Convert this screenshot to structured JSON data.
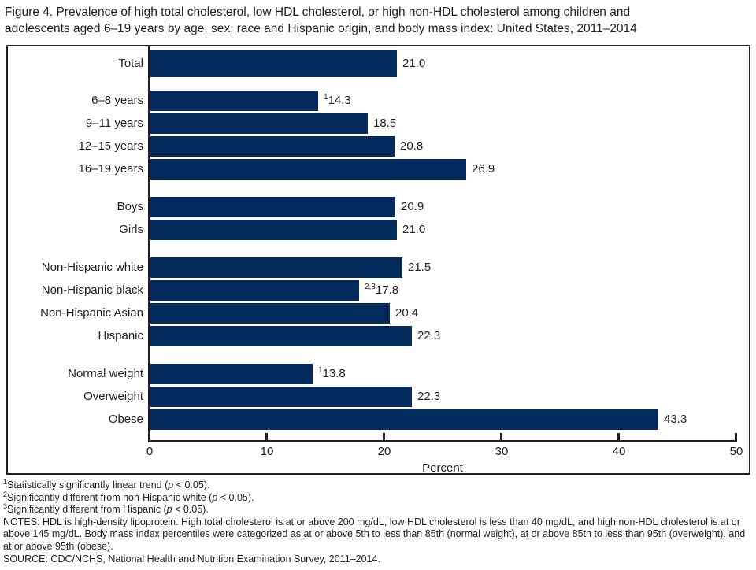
{
  "title_lines": [
    "Figure 4. Prevalence of high total cholesterol, low HDL cholesterol, or high non-HDL cholesterol among children and",
    "adolescents aged 6–19 years by age, sex, race and Hispanic origin, and body mass index: United States, 2011–2014"
  ],
  "chart_data": {
    "type": "bar",
    "orientation": "horizontal",
    "title": "",
    "xlabel": "Percent",
    "ylabel": "",
    "xlim": [
      0,
      50
    ],
    "xticks": [
      0,
      10,
      20,
      30,
      40,
      50
    ],
    "grid": false,
    "legend": false,
    "bar_color": "#032b5e",
    "groups": [
      {
        "name": "total",
        "bars": [
          {
            "label": "Total",
            "value": 21.0,
            "display": "21.0",
            "sup": null
          }
        ]
      },
      {
        "name": "age",
        "bars": [
          {
            "label": "6–8 years",
            "value": 14.3,
            "display": "14.3",
            "sup": "1"
          },
          {
            "label": "9–11 years",
            "value": 18.5,
            "display": "18.5",
            "sup": null
          },
          {
            "label": "12–15 years",
            "value": 20.8,
            "display": "20.8",
            "sup": null
          },
          {
            "label": "16–19 years",
            "value": 26.9,
            "display": "26.9",
            "sup": null
          }
        ]
      },
      {
        "name": "sex",
        "bars": [
          {
            "label": "Boys",
            "value": 20.9,
            "display": "20.9",
            "sup": null
          },
          {
            "label": "Girls",
            "value": 21.0,
            "display": "21.0",
            "sup": null
          }
        ]
      },
      {
        "name": "race-hispanic-origin",
        "bars": [
          {
            "label": "Non-Hispanic white",
            "value": 21.5,
            "display": "21.5",
            "sup": null
          },
          {
            "label": "Non-Hispanic black",
            "value": 17.8,
            "display": "17.8",
            "sup": "2,3"
          },
          {
            "label": "Non-Hispanic Asian",
            "value": 20.4,
            "display": "20.4",
            "sup": null
          },
          {
            "label": "Hispanic",
            "value": 22.3,
            "display": "22.3",
            "sup": null
          }
        ]
      },
      {
        "name": "body-mass-index",
        "bars": [
          {
            "label": "Normal weight",
            "value": 13.8,
            "display": "13.8",
            "sup": "1"
          },
          {
            "label": "Overweight",
            "value": 22.3,
            "display": "22.3",
            "sup": null
          },
          {
            "label": "Obese",
            "value": 43.3,
            "display": "43.3",
            "sup": null
          }
        ]
      }
    ]
  },
  "footnotes": [
    {
      "sup": "1",
      "text": "Statistically significantly linear trend (p < 0.05)."
    },
    {
      "sup": "2",
      "text": "Significantly different from non-Hispanic white (p < 0.05)."
    },
    {
      "sup": "3",
      "text": "Significantly different from Hispanic (p < 0.05)."
    },
    {
      "sup": null,
      "text": "NOTES: HDL is high-density lipoprotein. High total cholesterol is at or above 200 mg/dL, low HDL cholesterol is less than 40 mg/dL, and high non-HDL cholesterol is at or above 145 mg/dL. Body mass index percentiles were categorized as at or above 5th to less than 85th (normal weight), at or above 85th to less than 95th (overweight), and at or above 95th (obese)."
    },
    {
      "sup": null,
      "text": "SOURCE: CDC/NCHS, National Health and Nutrition Examination Survey, 2011–2014."
    }
  ]
}
